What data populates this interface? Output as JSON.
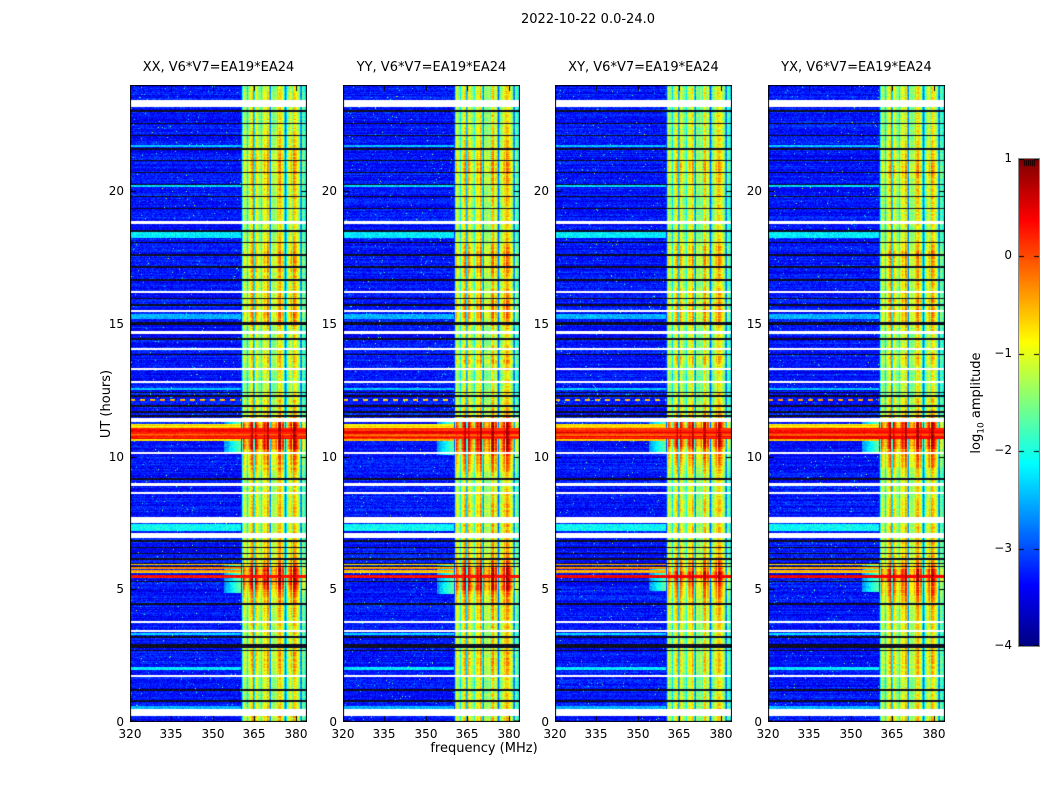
{
  "chart_data": {
    "type": "heatmap",
    "title": "2022-10-22 0.0-24.0",
    "xlabel": "frequency (MHz)",
    "ylabel": "UT (hours)",
    "x_range": [
      320,
      384
    ],
    "y_range": [
      0,
      24
    ],
    "x_ticks": [
      320,
      335,
      350,
      365,
      380
    ],
    "y_ticks": [
      0,
      5,
      10,
      15,
      20
    ],
    "colormap": "jet",
    "clim": [
      -4,
      1
    ],
    "colorbar": {
      "ticks": [
        1,
        0,
        -1,
        -2,
        -3,
        -4
      ],
      "label_pre": "log",
      "label_sub": "10",
      "label_post": " amplitude"
    },
    "panels": [
      {
        "label": "XX, V6*V7=EA19*EA24",
        "seed": 11,
        "gain": 1.0
      },
      {
        "label": "YY, V6*V7=EA19*EA24",
        "seed": 29,
        "gain": 1.03
      },
      {
        "label": "XY, V6*V7=EA19*EA24",
        "seed": 47,
        "gain": 0.94
      },
      {
        "label": "YX, V6*V7=EA19*EA24",
        "seed": 83,
        "gain": 0.97
      }
    ],
    "background_level": -3.3,
    "rfi_band": {
      "f_start": 360,
      "f_end": 384,
      "fade_start": 382,
      "dark_lines": [
        360.3,
        364.8,
        370.7,
        376.2,
        381.9
      ],
      "sub_lines": [
        362.5,
        367.6,
        369.2,
        373.4,
        374.9,
        378.7
      ]
    },
    "rfi_time_profile": [
      [
        0,
        0.68
      ],
      [
        0.5,
        0.66
      ],
      [
        0.9,
        0.6
      ],
      [
        1.6,
        0.58
      ],
      [
        2.0,
        0.7
      ],
      [
        2.5,
        0.72
      ],
      [
        2.9,
        0.62
      ],
      [
        3.5,
        0.65
      ],
      [
        4.2,
        0.7
      ],
      [
        4.7,
        0.8
      ],
      [
        4.95,
        0.92
      ],
      [
        5.3,
        0.95
      ],
      [
        5.5,
        1.0
      ],
      [
        5.75,
        0.95
      ],
      [
        6.05,
        0.85
      ],
      [
        6.4,
        0.72
      ],
      [
        7.0,
        0.68
      ],
      [
        7.5,
        0.66
      ],
      [
        8.0,
        0.7
      ],
      [
        8.6,
        0.62
      ],
      [
        9.2,
        0.6
      ],
      [
        9.6,
        0.78
      ],
      [
        10.0,
        0.85
      ],
      [
        10.3,
        0.95
      ],
      [
        10.45,
        1.0
      ],
      [
        11.25,
        1.0
      ],
      [
        11.45,
        0.8
      ],
      [
        11.8,
        0.68
      ],
      [
        12.3,
        0.62
      ],
      [
        12.8,
        0.55
      ],
      [
        13.4,
        0.6
      ],
      [
        13.65,
        0.74
      ],
      [
        13.9,
        0.62
      ],
      [
        14.3,
        0.58
      ],
      [
        14.8,
        0.62
      ],
      [
        15.1,
        0.75
      ],
      [
        15.5,
        0.8
      ],
      [
        16.0,
        0.75
      ],
      [
        16.4,
        0.65
      ],
      [
        17.0,
        0.72
      ],
      [
        17.4,
        0.8
      ],
      [
        17.8,
        0.75
      ],
      [
        18.3,
        0.62
      ],
      [
        19.0,
        0.6
      ],
      [
        19.6,
        0.62
      ],
      [
        20.3,
        0.68
      ],
      [
        20.8,
        0.75
      ],
      [
        21.3,
        0.7
      ],
      [
        22.0,
        0.62
      ],
      [
        22.6,
        0.6
      ],
      [
        23.1,
        0.58
      ],
      [
        23.6,
        0.6
      ],
      [
        24,
        0.58
      ]
    ],
    "features": {
      "white_gaps": [
        [
          23.3,
          0.28
        ],
        [
          18.82,
          0.14
        ],
        [
          16.2,
          0.1
        ],
        [
          15.48,
          0.08
        ],
        [
          14.68,
          0.14
        ],
        [
          14.05,
          0.08
        ],
        [
          13.3,
          0.08
        ],
        [
          12.82,
          0.08
        ],
        [
          11.38,
          0.14
        ],
        [
          10.14,
          0.08
        ],
        [
          8.95,
          0.08
        ],
        [
          8.62,
          0.08
        ],
        [
          7.62,
          0.22
        ],
        [
          7.02,
          0.2
        ],
        [
          3.78,
          0.08
        ],
        [
          3.42,
          0.08
        ],
        [
          1.72,
          0.08
        ],
        [
          0.35,
          0.26
        ]
      ],
      "black_lines": [
        [
          23.02,
          0.06
        ],
        [
          22.55,
          0.06
        ],
        [
          22.1,
          0.06
        ],
        [
          21.6,
          0.08
        ],
        [
          21.15,
          0.06
        ],
        [
          20.7,
          0.06
        ],
        [
          20.25,
          0.06
        ],
        [
          19.8,
          0.06
        ],
        [
          19.35,
          0.06
        ],
        [
          18.5,
          0.06
        ],
        [
          18.06,
          0.06
        ],
        [
          17.6,
          0.06
        ],
        [
          17.15,
          0.06
        ],
        [
          16.65,
          0.08
        ],
        [
          15.95,
          0.06
        ],
        [
          15.72,
          0.06
        ],
        [
          15.0,
          0.12
        ],
        [
          14.42,
          0.06
        ],
        [
          13.85,
          0.06
        ],
        [
          12.42,
          0.06
        ],
        [
          12.28,
          0.06
        ],
        [
          11.9,
          0.08
        ],
        [
          11.68,
          0.06
        ],
        [
          11.52,
          0.06
        ],
        [
          9.15,
          0.06
        ],
        [
          6.82,
          0.06
        ],
        [
          6.58,
          0.06
        ],
        [
          6.35,
          0.06
        ],
        [
          6.15,
          0.06
        ],
        [
          5.98,
          0.05
        ],
        [
          5.85,
          0.04
        ],
        [
          5.3,
          0.06
        ],
        [
          4.45,
          0.06
        ],
        [
          3.2,
          0.06
        ],
        [
          2.86,
          0.14
        ],
        [
          2.7,
          0.06
        ],
        [
          1.2,
          0.06
        ],
        [
          0.8,
          0.06
        ]
      ],
      "cyan_rows": [
        [
          21.7,
          0.1,
          -2.4
        ],
        [
          20.2,
          0.1,
          -2.3
        ],
        [
          18.34,
          0.22,
          -2.2
        ],
        [
          15.28,
          0.18,
          -2.5
        ],
        [
          12.55,
          0.1,
          -2.4
        ],
        [
          7.34,
          0.26,
          -2.1
        ],
        [
          3.33,
          0.08,
          -2.3
        ],
        [
          2.02,
          0.1,
          -2.2
        ],
        [
          0.55,
          0.1,
          -2.5
        ]
      ],
      "bursts": [
        [
          12.08,
          12.18,
          -0.55,
          1
        ],
        [
          11.08,
          11.22,
          -0.75,
          0
        ],
        [
          10.98,
          11.08,
          0.25,
          0
        ],
        [
          10.86,
          10.98,
          0.4,
          0
        ],
        [
          10.76,
          10.86,
          -0.05,
          0
        ],
        [
          10.68,
          10.76,
          0.3,
          0
        ],
        [
          10.58,
          10.68,
          -0.6,
          0
        ],
        [
          5.42,
          5.52,
          0.45,
          0
        ],
        [
          5.62,
          5.72,
          -0.5,
          0
        ],
        [
          5.78,
          5.88,
          -0.35,
          0
        ],
        [
          5.9,
          5.97,
          -0.6,
          0
        ]
      ]
    }
  }
}
